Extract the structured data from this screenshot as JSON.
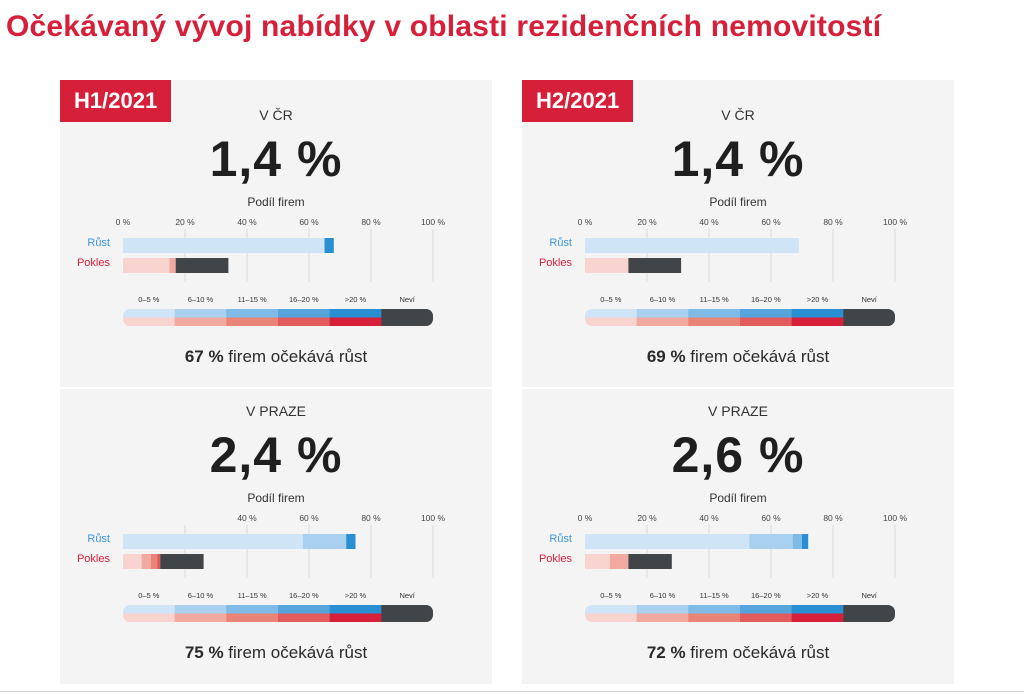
{
  "title": "Očekávaný vývoj nabídky v oblasti rezidenčních nemovitostí",
  "panels": [
    {
      "badge": "H1/2021",
      "blocks": [
        {
          "region": "V ČR",
          "value": "1,4 %",
          "axis_caption": "Podíl firem",
          "footer_pct": "67 %",
          "footer_text": "firem očekává růst"
        },
        {
          "region": "V PRAZE",
          "value": "2,4 %",
          "axis_caption": "Podíl firem",
          "footer_pct": "75 %",
          "footer_text": "firem očekává růst"
        }
      ]
    },
    {
      "badge": "H2/2021",
      "blocks": [
        {
          "region": "V ČR",
          "value": "1,4 %",
          "axis_caption": "Podíl firem",
          "footer_pct": "69 %",
          "footer_text": "firem očekává růst"
        },
        {
          "region": "V PRAZE",
          "value": "2,6 %",
          "axis_caption": "Podíl firem",
          "footer_pct": "72 %",
          "footer_text": "firem očekává růst"
        }
      ]
    }
  ],
  "chart_data": {
    "type": "bar",
    "stacked": true,
    "orientation": "horizontal",
    "xlim": [
      0,
      100
    ],
    "ticks_full": [
      "0 %",
      "20 %",
      "40 %",
      "60 %",
      "80 %",
      "100 %"
    ],
    "ticks_partial": [
      "40 %",
      "60 %",
      "80 %",
      "100 %"
    ],
    "row_labels": [
      "Růst",
      "Pokles"
    ],
    "legend": [
      "0–5 %",
      "6–10 %",
      "11–15 %",
      "16–20 %",
      ">20 %",
      "Neví"
    ],
    "colors": {
      "growth": [
        "#cfe4f6",
        "#a9d0ef",
        "#80bae6",
        "#55a5dc",
        "#2a8ed3"
      ],
      "decline": [
        "#f8d3cf",
        "#f1a9a0",
        "#e98477",
        "#e15b5c",
        "#d6203a"
      ],
      "unknown": "#424548",
      "row_label_growth": "#3a95d6",
      "row_label_decline": "#d6203a"
    },
    "charts": [
      {
        "panel": "H1/2021",
        "region": "V ČR",
        "ticks": "full",
        "growth": [
          65,
          0,
          0,
          0,
          3
        ],
        "decline": [
          15,
          2,
          0,
          0,
          0
        ],
        "unknown": 17
      },
      {
        "panel": "H1/2021",
        "region": "V PRAZE",
        "ticks": "partial",
        "growth": [
          58,
          14,
          0,
          0,
          3
        ],
        "decline": [
          6,
          3,
          2,
          1,
          0
        ],
        "unknown": 14
      },
      {
        "panel": "H2/2021",
        "region": "V ČR",
        "ticks": "full",
        "growth": [
          69,
          0,
          0,
          0,
          0
        ],
        "decline": [
          14,
          0,
          0,
          0,
          0
        ],
        "unknown": 17
      },
      {
        "panel": "H2/2021",
        "region": "V PRAZE",
        "ticks": "full",
        "growth": [
          53,
          14,
          3,
          0,
          2
        ],
        "decline": [
          8,
          6,
          0,
          0,
          0
        ],
        "unknown": 14
      }
    ]
  }
}
